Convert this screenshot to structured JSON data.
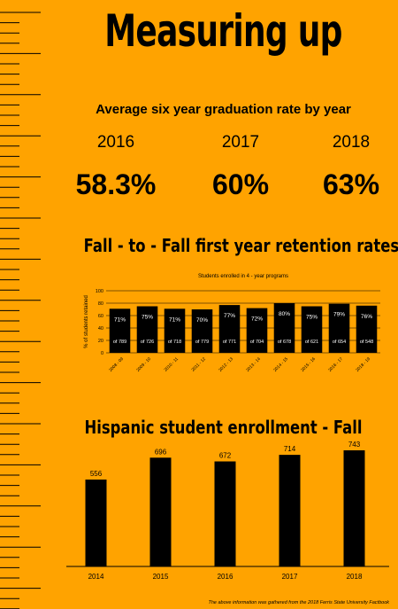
{
  "title": "Measuring up",
  "graduation": {
    "title": "Average six year graduation rate by year",
    "items": [
      {
        "year": "2016",
        "rate": "58.3%"
      },
      {
        "year": "2017",
        "rate": "60%"
      },
      {
        "year": "2018",
        "rate": "63%"
      }
    ]
  },
  "retention": {
    "title": "Fall - to - Fall first year retention rates",
    "subtitle": "Students enrolled in 4 - year programs"
  },
  "hispanic": {
    "title": "Hispanic student enrollment - Fall"
  },
  "footnote": "The above information was gathered from the 2018 Ferris State University Factbook",
  "chart_data": [
    {
      "type": "bar",
      "title": "Fall - to - Fall first year retention rates",
      "subtitle": "Students enrolled in 4 - year programs",
      "ylabel": "% of students retained",
      "ylim": [
        0,
        100
      ],
      "yticks": [
        0,
        20,
        40,
        60,
        80,
        100
      ],
      "grid": true,
      "categories": [
        "2008 - 09",
        "2009 - 10",
        "2010 - 11",
        "2011 - 12",
        "2012 - 13",
        "2013 - 14",
        "2014 - 15",
        "2015 - 16",
        "2016 - 17",
        "2018 - 19"
      ],
      "values": [
        71,
        75,
        71,
        70,
        77,
        72,
        80,
        75,
        79,
        76
      ],
      "value_labels": [
        "71%",
        "75%",
        "71%",
        "70%",
        "77%",
        "72%",
        "80%",
        "75%",
        "79%",
        "76%"
      ],
      "bar_labels": [
        "of 789",
        "of 726",
        "of 718",
        "of 779",
        "of 771",
        "of 704",
        "of 678",
        "of 621",
        "of 654",
        "of 548"
      ],
      "colors": {
        "bar": "#000000",
        "text": "#FFFFFF"
      }
    },
    {
      "type": "bar",
      "title": "Hispanic student enrollment - Fall",
      "categories": [
        "2014",
        "2015",
        "2016",
        "2017",
        "2018"
      ],
      "values": [
        556,
        696,
        672,
        714,
        743
      ],
      "ylim": [
        0,
        760
      ],
      "colors": {
        "bar": "#000000"
      }
    }
  ]
}
